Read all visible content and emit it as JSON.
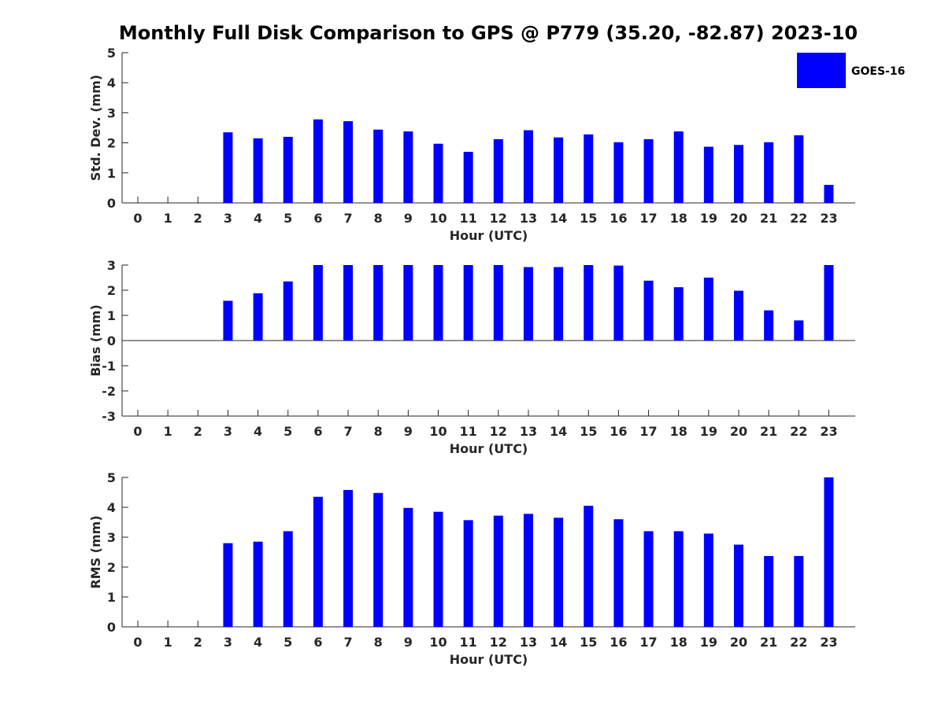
{
  "title": "Monthly Full Disk Comparison to GPS @ P779 (35.20, -82.87) 2023-10",
  "legend": {
    "label": "GOES-16",
    "color": "#0000ff"
  },
  "chart_data": [
    {
      "type": "bar",
      "name": "std",
      "categories": [
        "0",
        "1",
        "2",
        "3",
        "4",
        "5",
        "6",
        "7",
        "8",
        "9",
        "10",
        "11",
        "12",
        "13",
        "14",
        "15",
        "16",
        "17",
        "18",
        "19",
        "20",
        "21",
        "22",
        "23"
      ],
      "series": [
        {
          "name": "GOES-16",
          "values": [
            null,
            null,
            null,
            2.35,
            2.15,
            2.2,
            2.78,
            2.72,
            2.44,
            2.38,
            1.97,
            1.7,
            2.12,
            2.42,
            2.18,
            2.28,
            2.02,
            2.12,
            2.38,
            1.87,
            1.93,
            2.02,
            2.25,
            0.6
          ]
        }
      ],
      "xlabel": "Hour (UTC)",
      "ylabel": "Std. Dev. (mm)",
      "ylim": [
        0,
        5
      ],
      "yticks": [
        0,
        1,
        2,
        3,
        4,
        5
      ],
      "grid": false
    },
    {
      "type": "bar",
      "name": "bias",
      "categories": [
        "0",
        "1",
        "2",
        "3",
        "4",
        "5",
        "6",
        "7",
        "8",
        "9",
        "10",
        "11",
        "12",
        "13",
        "14",
        "15",
        "16",
        "17",
        "18",
        "19",
        "20",
        "21",
        "22",
        "23"
      ],
      "series": [
        {
          "name": "GOES-16",
          "values": [
            null,
            null,
            null,
            1.58,
            1.88,
            2.35,
            3.0,
            3.0,
            3.0,
            3.0,
            3.0,
            3.0,
            3.0,
            2.92,
            2.92,
            3.0,
            2.98,
            2.38,
            2.12,
            2.5,
            1.98,
            1.2,
            0.8,
            3.0
          ]
        }
      ],
      "xlabel": "Hour (UTC)",
      "ylabel": "Bias (mm)",
      "ylim": [
        -3,
        3
      ],
      "yticks": [
        -3,
        -2,
        -1,
        0,
        1,
        2,
        3
      ],
      "grid": false
    },
    {
      "type": "bar",
      "name": "rms",
      "categories": [
        "0",
        "1",
        "2",
        "3",
        "4",
        "5",
        "6",
        "7",
        "8",
        "9",
        "10",
        "11",
        "12",
        "13",
        "14",
        "15",
        "16",
        "17",
        "18",
        "19",
        "20",
        "21",
        "22",
        "23"
      ],
      "series": [
        {
          "name": "GOES-16",
          "values": [
            null,
            null,
            null,
            2.8,
            2.85,
            3.2,
            4.35,
            4.58,
            4.48,
            3.98,
            3.85,
            3.57,
            3.72,
            3.78,
            3.65,
            4.05,
            3.6,
            3.2,
            3.2,
            3.12,
            2.75,
            2.37,
            2.37,
            5.0
          ]
        }
      ],
      "xlabel": "Hour (UTC)",
      "ylabel": "RMS (mm)",
      "ylim": [
        0,
        5
      ],
      "yticks": [
        0,
        1,
        2,
        3,
        4,
        5
      ],
      "grid": false
    }
  ]
}
